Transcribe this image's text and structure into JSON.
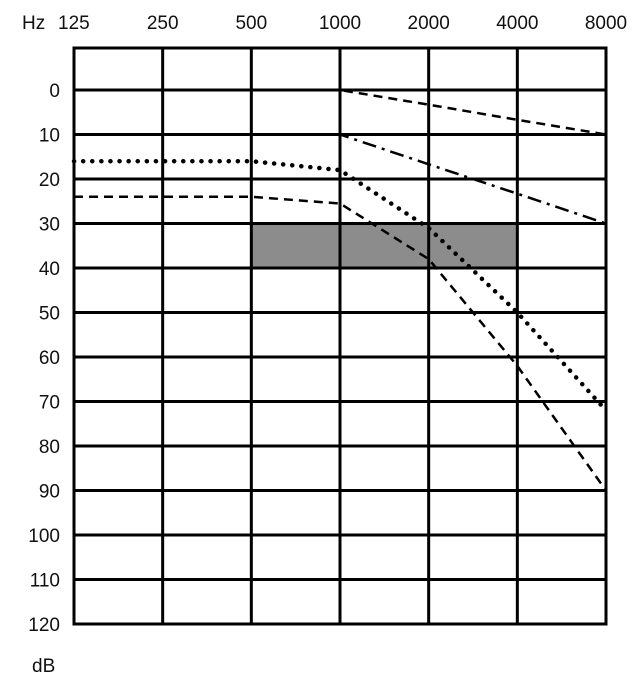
{
  "chart_data": {
    "type": "line",
    "xlabel": "Hz",
    "ylabel": "dB",
    "x_scale": "log2",
    "x": [
      125,
      250,
      500,
      1000,
      2000,
      4000,
      8000
    ],
    "x_tick_labels": [
      "125",
      "250",
      "500",
      "1000",
      "2000",
      "4000",
      "8000"
    ],
    "y_tick_labels": [
      "0",
      "10",
      "20",
      "30",
      "40",
      "50",
      "60",
      "70",
      "80",
      "90",
      "100",
      "110",
      "120"
    ],
    "ylim": [
      0,
      120
    ],
    "y_inverted": true,
    "grid": true,
    "shaded_region": {
      "x": [
        500,
        4000
      ],
      "y": [
        30,
        40
      ],
      "color": "#8c8c8c"
    },
    "series": [
      {
        "style": "dashed",
        "values": [
          0,
          0,
          0,
          0,
          3.3,
          6.7,
          10
        ]
      },
      {
        "style": "dash-dot",
        "values": [
          10,
          10,
          10,
          10,
          16.7,
          23.3,
          30
        ]
      },
      {
        "style": "dotted",
        "values": [
          16,
          16,
          16,
          18,
          31,
          50,
          72
        ]
      },
      {
        "style": "dashed",
        "values": [
          24,
          24,
          24,
          25.5,
          38,
          62,
          90
        ]
      }
    ]
  }
}
